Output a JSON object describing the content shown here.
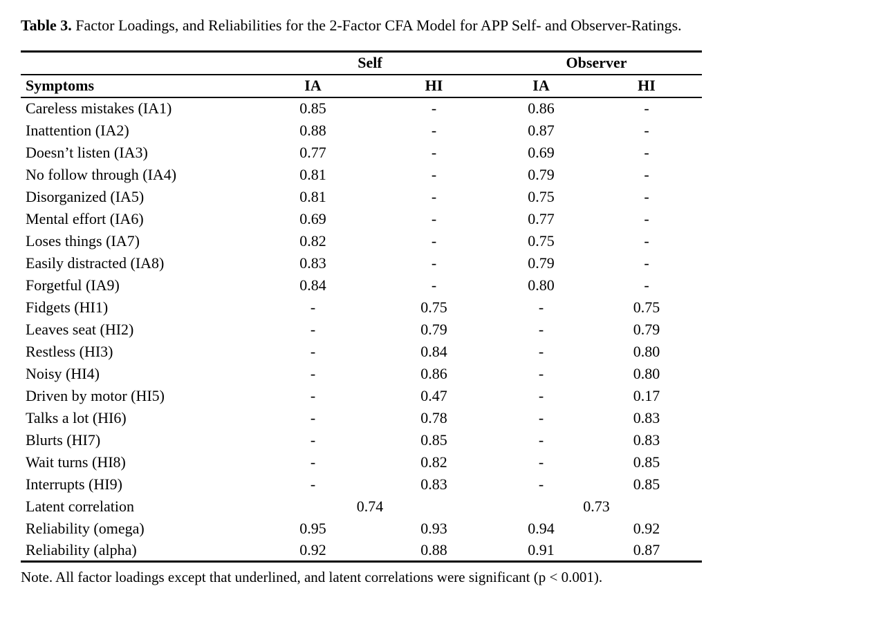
{
  "title": {
    "label": "Table 3.",
    "text": "Factor Loadings, and Reliabilities for the 2-Factor CFA Model for APP Self- and Observer-Ratings."
  },
  "table": {
    "spanners": {
      "self": "Self",
      "observer": "Observer"
    },
    "columns": [
      "Symptoms",
      "IA",
      "HI",
      "IA",
      "HI"
    ],
    "rows": [
      {
        "label": "Careless mistakes (IA1)",
        "values": [
          "0.85",
          "-",
          "0.86",
          "-"
        ]
      },
      {
        "label": "Inattention (IA2)",
        "values": [
          "0.88",
          "-",
          "0.87",
          "-"
        ]
      },
      {
        "label": "Doesn’t listen (IA3)",
        "values": [
          "0.77",
          "-",
          "0.69",
          "-"
        ]
      },
      {
        "label": "No follow through (IA4)",
        "values": [
          "0.81",
          "-",
          "0.79",
          "-"
        ]
      },
      {
        "label": "Disorganized (IA5)",
        "values": [
          "0.81",
          "-",
          "0.75",
          "-"
        ]
      },
      {
        "label": "Mental effort (IA6)",
        "values": [
          "0.69",
          "-",
          "0.77",
          "-"
        ]
      },
      {
        "label": "Loses things (IA7)",
        "values": [
          "0.82",
          "-",
          "0.75",
          "-"
        ]
      },
      {
        "label": "Easily distracted (IA8)",
        "values": [
          "0.83",
          "-",
          "0.79",
          "-"
        ]
      },
      {
        "label": "Forgetful (IA9)",
        "values": [
          "0.84",
          "-",
          "0.80",
          "-"
        ]
      },
      {
        "label": "Fidgets (HI1)",
        "values": [
          "-",
          "0.75",
          "-",
          "0.75"
        ]
      },
      {
        "label": "Leaves seat (HI2)",
        "values": [
          "-",
          "0.79",
          "-",
          "0.79"
        ]
      },
      {
        "label": "Restless (HI3)",
        "values": [
          "-",
          "0.84",
          "-",
          "0.80"
        ]
      },
      {
        "label": "Noisy (HI4)",
        "values": [
          "-",
          "0.86",
          "-",
          "0.80"
        ]
      },
      {
        "label": "Driven by motor (HI5)",
        "values": [
          "-",
          "0.47",
          "-",
          "0.17"
        ]
      },
      {
        "label": "Talks a lot (HI6)",
        "values": [
          "-",
          "0.78",
          "-",
          "0.83"
        ]
      },
      {
        "label": "Blurts (HI7)",
        "values": [
          "-",
          "0.85",
          "-",
          "0.83"
        ]
      },
      {
        "label": "Wait turns (HI8)",
        "values": [
          "-",
          "0.82",
          "-",
          "0.85"
        ]
      },
      {
        "label": "Interrupts (HI9)",
        "values": [
          "-",
          "0.83",
          "-",
          "0.85"
        ]
      }
    ],
    "latent_correlation": {
      "label": "Latent correlation",
      "self": "0.74",
      "observer": "0.73"
    },
    "reliability_omega": {
      "label": "Reliability (omega)",
      "values": [
        "0.95",
        "0.93",
        "0.94",
        "0.92"
      ]
    },
    "reliability_alpha": {
      "label": "Reliability (alpha)",
      "values": [
        "0.92",
        "0.88",
        "0.91",
        "0.87"
      ]
    }
  },
  "note": "Note. All factor loadings except that underlined, and latent correlations were significant (p < 0.001)."
}
